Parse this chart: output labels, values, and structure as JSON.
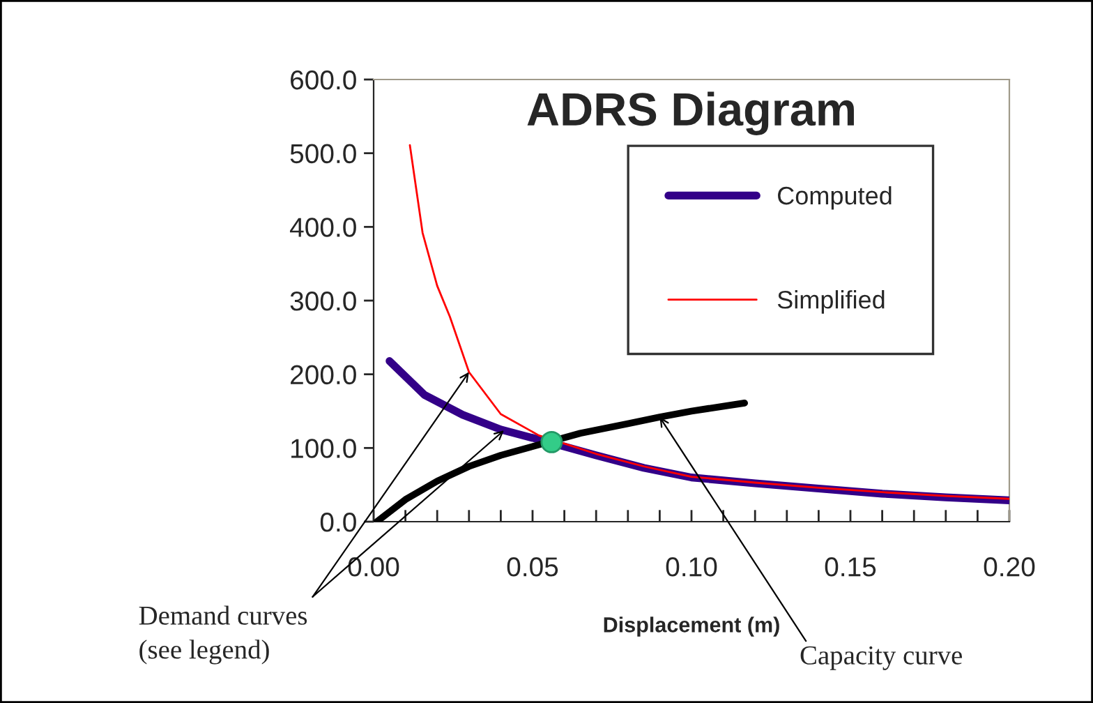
{
  "chart_data": {
    "type": "line",
    "title": "ADRS Diagram",
    "xlabel": "Displacement (m)",
    "xlim": [
      0,
      0.2
    ],
    "ylim": [
      0,
      600
    ],
    "xticks": [
      {
        "value": 0,
        "label": "0.00"
      },
      {
        "value": 0.01,
        "label": null
      },
      {
        "value": 0.02,
        "label": null
      },
      {
        "value": 0.03,
        "label": null
      },
      {
        "value": 0.04,
        "label": null
      },
      {
        "value": 0.05,
        "label": "0.05"
      },
      {
        "value": 0.06,
        "label": null
      },
      {
        "value": 0.07,
        "label": null
      },
      {
        "value": 0.08,
        "label": null
      },
      {
        "value": 0.09,
        "label": null
      },
      {
        "value": 0.1,
        "label": "0.10"
      },
      {
        "value": 0.11,
        "label": null
      },
      {
        "value": 0.12,
        "label": null
      },
      {
        "value": 0.13,
        "label": null
      },
      {
        "value": 0.14,
        "label": null
      },
      {
        "value": 0.15,
        "label": "0.15"
      },
      {
        "value": 0.16,
        "label": null
      },
      {
        "value": 0.17,
        "label": null
      },
      {
        "value": 0.18,
        "label": null
      },
      {
        "value": 0.19,
        "label": null
      },
      {
        "value": 0.2,
        "label": "0.20"
      }
    ],
    "yticks": [
      {
        "value": 0,
        "label": "0.0"
      },
      {
        "value": 100,
        "label": "100.0"
      },
      {
        "value": 200,
        "label": "200.0"
      },
      {
        "value": 300,
        "label": "300.0"
      },
      {
        "value": 400,
        "label": "400.0"
      },
      {
        "value": 500,
        "label": "500.0"
      },
      {
        "value": 600,
        "label": "600.0"
      }
    ],
    "legend": "top right",
    "grid": false,
    "series": [
      {
        "name": "Computed",
        "color": "#330088",
        "x": [
          0.005,
          0.016,
          0.028,
          0.04,
          0.055,
          0.07,
          0.085,
          0.1,
          0.12,
          0.14,
          0.16,
          0.18,
          0.2
        ],
        "values": [
          218,
          172,
          145,
          125,
          108,
          90,
          73,
          60,
          52,
          45,
          38,
          33,
          29
        ]
      },
      {
        "name": "Simplified",
        "color": "#ff0000",
        "x": [
          0.0114,
          0.0154,
          0.02,
          0.024,
          0.03,
          0.04,
          0.052,
          0.07,
          0.085,
          0.1,
          0.12,
          0.14,
          0.16,
          0.18,
          0.2
        ],
        "values": [
          511,
          392,
          320,
          278,
          203,
          146,
          117,
          92,
          75,
          61,
          53,
          46,
          40,
          35,
          31
        ]
      },
      {
        "color": "#000000",
        "x": [
          0.001,
          0.01,
          0.02,
          0.03,
          0.04,
          0.055,
          0.065,
          0.08,
          0.09,
          0.1,
          0.1167
        ],
        "values": [
          0,
          30,
          55,
          75,
          90,
          108,
          120,
          133,
          142,
          150,
          161
        ]
      },
      {
        "type": "scatter",
        "marker": "circle",
        "color": "#33cc88",
        "x": [
          0.056
        ],
        "values": [
          108
        ]
      }
    ],
    "annotations": [
      {
        "text": "Demand curves\n(see legend)",
        "x": 0.03,
        "y": 203
      },
      {
        "text": "Capacity curve",
        "x": 0.09,
        "y": 142
      }
    ]
  }
}
